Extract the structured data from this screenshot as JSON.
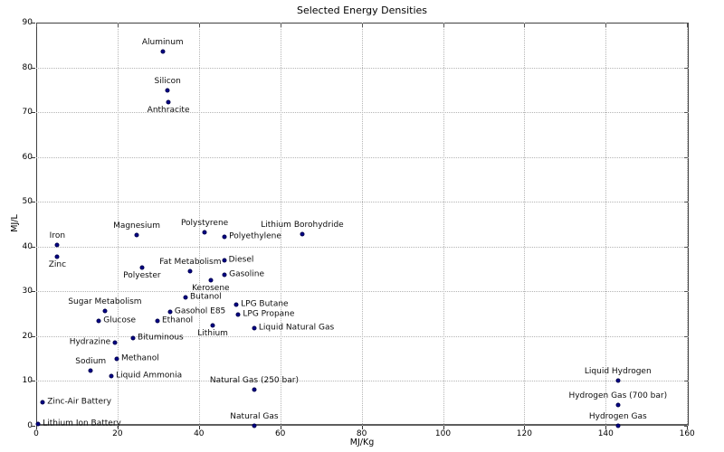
{
  "chart_data": {
    "type": "scatter",
    "title": "Selected Energy Densities",
    "xlabel": "MJ/Kg",
    "ylabel": "MJ/L",
    "xlim": [
      0,
      160.4
    ],
    "ylim": [
      0,
      90
    ],
    "x_ticks": [
      0,
      20,
      40,
      60,
      80,
      100,
      120,
      140,
      160
    ],
    "y_ticks": [
      0,
      10,
      20,
      30,
      40,
      50,
      60,
      70,
      80,
      90
    ],
    "grid": true,
    "grid_style": "dotted",
    "legend": "none",
    "colors": {
      "dot_fill": "#00008b",
      "dot_edge": "#00004d",
      "grid": "#b5b5b5",
      "axis": "#3f3f3f",
      "text": "#000000"
    },
    "points": [
      {
        "label": "Aluminum",
        "x": 31.1,
        "y": 83.6,
        "anchor": "above"
      },
      {
        "label": "Silicon",
        "x": 32.3,
        "y": 74.9,
        "anchor": "above"
      },
      {
        "label": "Anthracite",
        "x": 32.5,
        "y": 72.3,
        "anchor": "below"
      },
      {
        "label": "Magnesium",
        "x": 24.7,
        "y": 42.6,
        "anchor": "above"
      },
      {
        "label": "Iron",
        "x": 5.2,
        "y": 40.4,
        "anchor": "above"
      },
      {
        "label": "Zinc",
        "x": 5.2,
        "y": 37.8,
        "anchor": "below"
      },
      {
        "label": "Polystyrene",
        "x": 41.4,
        "y": 43.2,
        "anchor": "above"
      },
      {
        "label": "Polyethylene",
        "x": 46.3,
        "y": 42.2,
        "anchor": "right"
      },
      {
        "label": "Lithium Borohydride",
        "x": 65.4,
        "y": 42.8,
        "anchor": "above"
      },
      {
        "label": "Diesel",
        "x": 46.2,
        "y": 36.9,
        "anchor": "right"
      },
      {
        "label": "Fat Metabolism",
        "x": 37.9,
        "y": 34.5,
        "anchor": "above"
      },
      {
        "label": "Polyester",
        "x": 26.0,
        "y": 35.3,
        "anchor": "below"
      },
      {
        "label": "Gasoline",
        "x": 46.3,
        "y": 33.7,
        "anchor": "right"
      },
      {
        "label": "Kerosene",
        "x": 42.9,
        "y": 32.5,
        "anchor": "below"
      },
      {
        "label": "Butanol",
        "x": 36.7,
        "y": 28.7,
        "anchor": "right"
      },
      {
        "label": "Sugar Metabolism",
        "x": 16.9,
        "y": 25.7,
        "anchor": "above"
      },
      {
        "label": "Gasohol E85",
        "x": 32.9,
        "y": 25.4,
        "anchor": "right"
      },
      {
        "label": "LPG Butane",
        "x": 49.2,
        "y": 27.1,
        "anchor": "right"
      },
      {
        "label": "LPG Propane",
        "x": 49.7,
        "y": 24.9,
        "anchor": "right"
      },
      {
        "label": "Glucose",
        "x": 15.4,
        "y": 23.4,
        "anchor": "right"
      },
      {
        "label": "Ethanol",
        "x": 29.8,
        "y": 23.4,
        "anchor": "right"
      },
      {
        "label": "Lithium",
        "x": 43.4,
        "y": 22.5,
        "anchor": "below"
      },
      {
        "label": "Liquid Natural Gas",
        "x": 53.6,
        "y": 21.8,
        "anchor": "right"
      },
      {
        "label": "Bituminous",
        "x": 23.8,
        "y": 19.6,
        "anchor": "right"
      },
      {
        "label": "Hydrazine",
        "x": 19.4,
        "y": 18.6,
        "anchor": "left"
      },
      {
        "label": "Methanol",
        "x": 19.8,
        "y": 15.0,
        "anchor": "right"
      },
      {
        "label": "Sodium",
        "x": 13.4,
        "y": 12.4,
        "anchor": "above"
      },
      {
        "label": "Liquid Ammonia",
        "x": 18.5,
        "y": 11.0,
        "anchor": "right"
      },
      {
        "label": "Natural Gas (250 bar)",
        "x": 53.6,
        "y": 8.1,
        "anchor": "above"
      },
      {
        "label": "Zinc-Air Battery",
        "x": 1.6,
        "y": 5.3,
        "anchor": "right"
      },
      {
        "label": "Lithium Ion Battery",
        "x": 0.5,
        "y": 0.4,
        "anchor": "right"
      },
      {
        "label": "Natural Gas",
        "x": 53.6,
        "y": 0.1,
        "anchor": "above"
      },
      {
        "label": "Liquid Hydrogen",
        "x": 143.0,
        "y": 10.0,
        "anchor": "above"
      },
      {
        "label": "Hydrogen Gas (700 bar)",
        "x": 143.0,
        "y": 4.7,
        "anchor": "above"
      },
      {
        "label": "Hydrogen Gas",
        "x": 143.0,
        "y": 0.1,
        "anchor": "above"
      }
    ]
  }
}
